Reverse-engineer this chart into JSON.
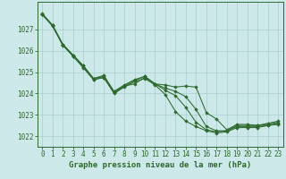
{
  "title": "Graphe pression niveau de la mer (hPa)",
  "hours": [
    0,
    1,
    2,
    3,
    4,
    5,
    6,
    7,
    8,
    9,
    10,
    11,
    12,
    13,
    14,
    15,
    16,
    17,
    18,
    19,
    20,
    21,
    22,
    23
  ],
  "series": [
    [
      1027.7,
      1027.2,
      1026.3,
      1025.8,
      1025.3,
      1024.7,
      1024.8,
      1024.05,
      1024.35,
      1024.45,
      1024.75,
      1024.45,
      1024.4,
      1024.3,
      1024.35,
      1024.3,
      1023.1,
      1022.8,
      1022.3,
      1022.55,
      1022.55,
      1022.5,
      1022.6,
      1022.7
    ],
    [
      1027.7,
      1027.2,
      1026.3,
      1025.75,
      1025.25,
      1024.65,
      1024.75,
      1024.05,
      1024.35,
      1024.6,
      1024.8,
      1024.45,
      1024.15,
      1023.9,
      1023.35,
      1022.65,
      1022.3,
      1022.2,
      1022.25,
      1022.45,
      1022.45,
      1022.45,
      1022.5,
      1022.6
    ],
    [
      1027.7,
      1027.15,
      1026.25,
      1025.75,
      1025.2,
      1024.65,
      1024.75,
      1024.0,
      1024.3,
      1024.55,
      1024.7,
      1024.4,
      1023.95,
      1023.15,
      1022.7,
      1022.45,
      1022.25,
      1022.15,
      1022.2,
      1022.4,
      1022.4,
      1022.4,
      1022.5,
      1022.55
    ],
    [
      1027.75,
      1027.2,
      1026.3,
      1025.8,
      1025.3,
      1024.7,
      1024.85,
      1024.1,
      1024.4,
      1024.65,
      1024.8,
      1024.45,
      1024.25,
      1024.1,
      1023.85,
      1023.25,
      1022.45,
      1022.25,
      1022.25,
      1022.5,
      1022.5,
      1022.5,
      1022.55,
      1022.65
    ]
  ],
  "line_color": "#2d6a2d",
  "marker_color": "#2d6a2d",
  "bg_color": "#cce8e8",
  "grid_color": "#aacece",
  "ylim": [
    1021.5,
    1028.3
  ],
  "yticks": [
    1022,
    1023,
    1024,
    1025,
    1026,
    1027
  ],
  "xticks": [
    0,
    1,
    2,
    3,
    4,
    5,
    6,
    7,
    8,
    9,
    10,
    11,
    12,
    13,
    14,
    15,
    16,
    17,
    18,
    19,
    20,
    21,
    22,
    23
  ],
  "title_fontsize": 6.5,
  "tick_fontsize": 5.5,
  "linewidth": 0.75,
  "markersize": 1.8
}
